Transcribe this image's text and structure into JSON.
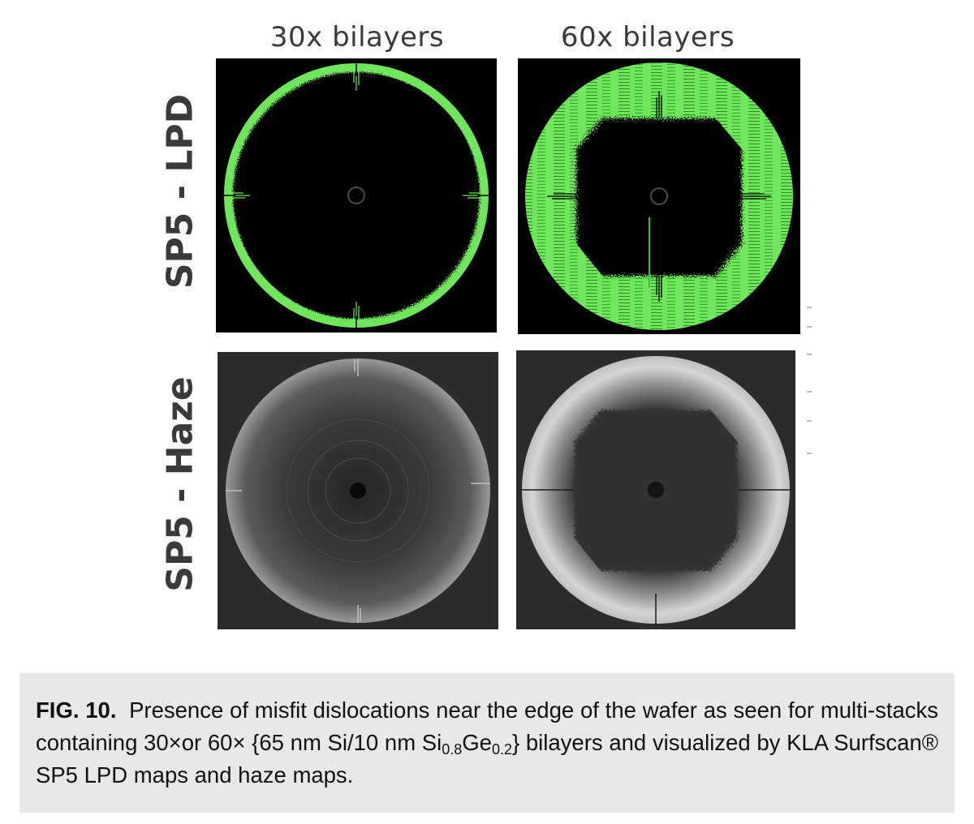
{
  "figure": {
    "column_labels": [
      "30x bilayers",
      "60x bilayers"
    ],
    "row_labels": [
      "SP5 - LPD",
      "SP5 - Haze"
    ],
    "panels": [
      {
        "id": "lpd-30x",
        "map": "LPD",
        "bilayers": "30x"
      },
      {
        "id": "lpd-60x",
        "map": "LPD",
        "bilayers": "60x"
      },
      {
        "id": "haze-30x",
        "map": "Haze",
        "bilayers": "30x"
      },
      {
        "id": "haze-60x",
        "map": "Haze",
        "bilayers": "60x"
      }
    ],
    "colors": {
      "lpd_defects": "#6ee85a",
      "lpd_background": "#000000",
      "haze_background": "#2c2c2c"
    }
  },
  "caption": {
    "label": "FIG. 10.",
    "text_1": "Presence of misfit dislocations near the edge of the wafer as seen for multi-stacks containing 30×or 60× {65 nm Si/10 nm Si",
    "sub_1": "0.8",
    "text_2": "Ge",
    "sub_2": "0.2",
    "text_3": "} bilayers and visualized by KLA Surfscan® SP5 LPD maps and haze maps."
  }
}
